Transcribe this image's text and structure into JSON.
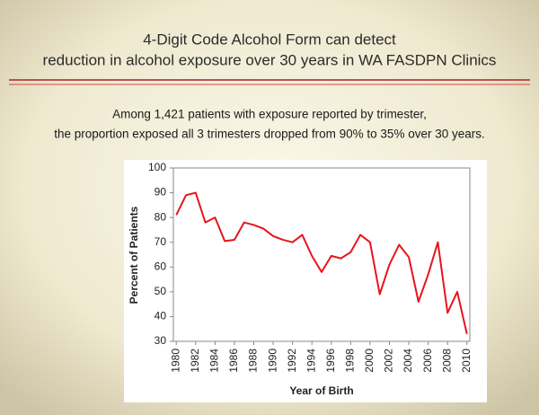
{
  "chart_data": {
    "type": "line",
    "title": [
      "4-Digit Code Alcohol Form can detect",
      "reduction in alcohol exposure over 30 years in WA FASDPN Clinics"
    ],
    "subtitle": [
      "Among 1,421 patients with exposure reported by trimester,",
      "the proportion exposed all 3 trimesters dropped from 90% to 35% over 30 years."
    ],
    "x_label": "Year of Birth",
    "y_label": "Percent of Patients",
    "x": [
      1980,
      1981,
      1982,
      1983,
      1984,
      1985,
      1986,
      1987,
      1988,
      1989,
      1990,
      1991,
      1992,
      1993,
      1994,
      1995,
      1996,
      1997,
      1998,
      1999,
      2000,
      2001,
      2002,
      2003,
      2004,
      2005,
      2006,
      2007,
      2008,
      2009,
      2010
    ],
    "series": [
      {
        "color": "#e8141c",
        "values": [
          81,
          89,
          90,
          78,
          80,
          70.5,
          71,
          78,
          77,
          75.5,
          72.5,
          71,
          70,
          73,
          64.5,
          58,
          64.5,
          63.5,
          66,
          73,
          70,
          49,
          61,
          69,
          64,
          46,
          57,
          70,
          41.5,
          50,
          33
        ]
      }
    ],
    "xlim": [
      1979.7,
      2010.3
    ],
    "xticks": [
      1980,
      1982,
      1984,
      1986,
      1988,
      1990,
      1992,
      1994,
      1996,
      1998,
      2000,
      2002,
      2004,
      2006,
      2008,
      2010
    ],
    "ylim": [
      30,
      100
    ],
    "yticks": [
      30,
      40,
      50,
      60,
      70,
      80,
      90,
      100
    ],
    "grid": false
  }
}
